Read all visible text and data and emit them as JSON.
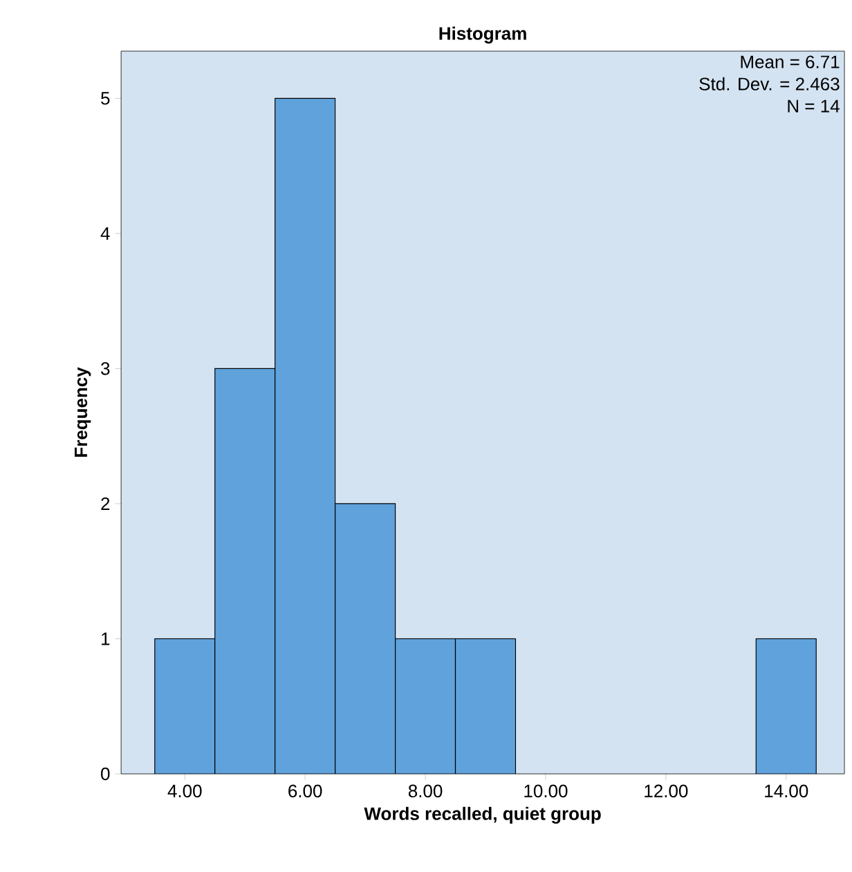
{
  "chart_data": {
    "type": "histogram",
    "title": "Histogram",
    "xlabel": "Words recalled, quiet group",
    "ylabel": "Frequency",
    "bins": [
      3.5,
      4.5,
      5.5,
      6.5,
      7.5,
      8.5,
      9.5,
      10.5,
      11.5,
      12.5,
      13.5,
      14.5
    ],
    "values": [
      1,
      3,
      5,
      2,
      1,
      1,
      0,
      0,
      0,
      0,
      1
    ],
    "color": "#5fa2dc",
    "xlim": [
      2.94,
      14.97
    ],
    "ylim": [
      0,
      5.35
    ],
    "xticks": [
      {
        "value": 4,
        "label": "4.00"
      },
      {
        "value": 6,
        "label": "6.00"
      },
      {
        "value": 8,
        "label": "8.00"
      },
      {
        "value": 10,
        "label": "10.00"
      },
      {
        "value": 12,
        "label": "12.00"
      },
      {
        "value": 14,
        "label": "14.00"
      }
    ],
    "yticks": [
      0,
      1,
      2,
      3,
      4,
      5
    ],
    "grid": false,
    "annotations": [
      "Mean = 6.71",
      "Std. Dev. = 2.463",
      "N = 14"
    ]
  }
}
